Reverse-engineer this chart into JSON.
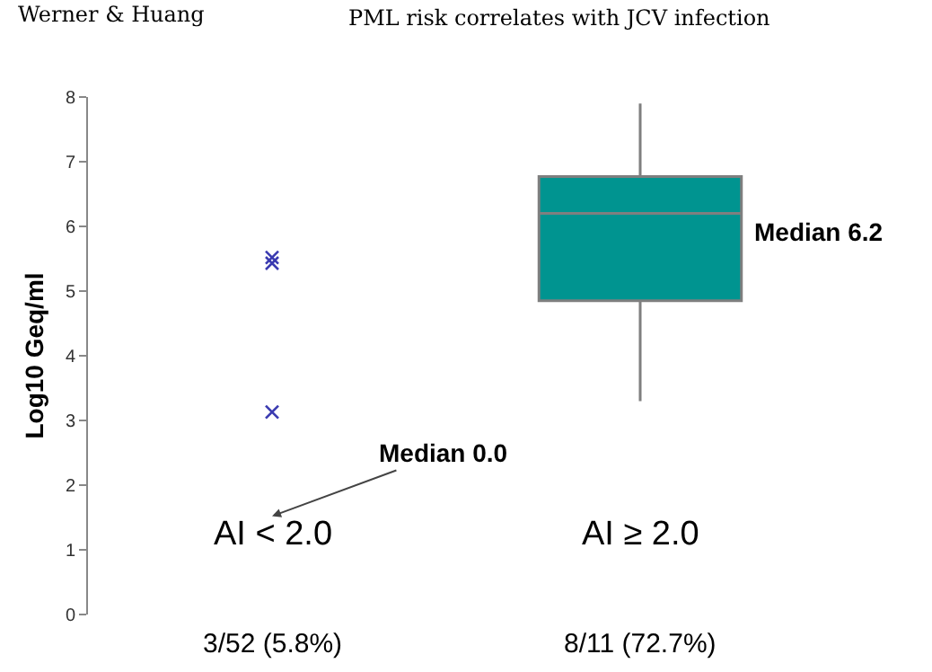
{
  "chart_data": {
    "type": "box",
    "title": "PML risk correlates with JCV infection",
    "ylabel": "Log10 Geq/ml",
    "categories": [
      "AI < 2.0",
      "AI ≥ 2.0"
    ],
    "ylim": [
      0,
      8
    ],
    "yticks": [
      0,
      1,
      2,
      3,
      4,
      5,
      6,
      7,
      8
    ],
    "series": [
      {
        "color": "#009490",
        "boxes": [
          null,
          {
            "low": 3.3,
            "q1": 4.85,
            "median": 6.2,
            "q3": 6.77,
            "high": 7.9
          }
        ]
      },
      {
        "type": "scatter",
        "color": "#3a3ab0",
        "marker": "cross",
        "x": [
          "AI < 2.0",
          "AI < 2.0",
          "AI < 2.0"
        ],
        "values": [
          5.52,
          5.43,
          3.13
        ]
      }
    ],
    "annotations": [
      "Werner & Huang",
      "Median 0.0",
      "Median 6.2",
      "3/52 (5.8%)",
      "8/11 (72.7%)"
    ]
  }
}
